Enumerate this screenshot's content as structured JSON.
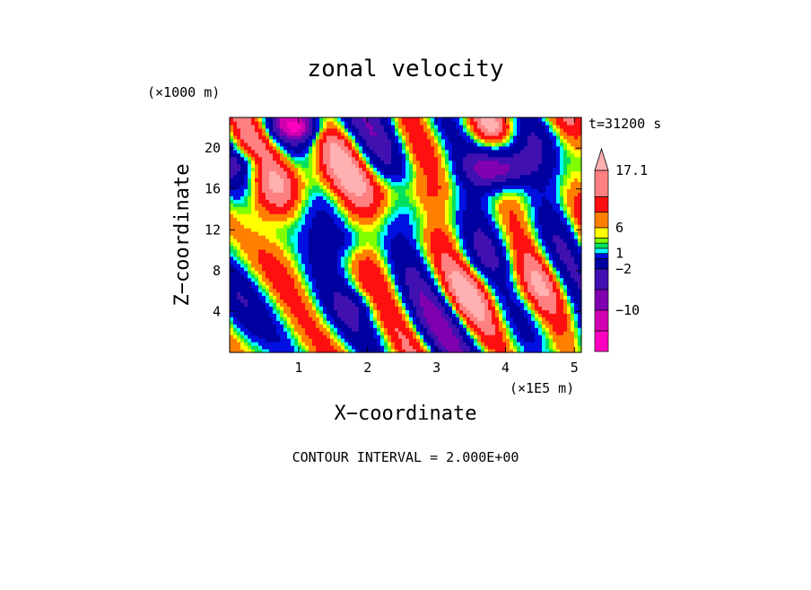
{
  "chart_data": {
    "type": "heatmap",
    "title": "zonal velocity",
    "xlabel": "X−coordinate",
    "ylabel": "Z−coordinate",
    "x_unit": "(×1E5 m)",
    "y_unit": "(×1000 m)",
    "time_label": "t=31200 s",
    "xlim": [
      0,
      5.1
    ],
    "ylim": [
      0,
      23
    ],
    "x_ticks": [
      1,
      2,
      3,
      4,
      5
    ],
    "x_tick_labels": [
      "1",
      "2",
      "3",
      "4",
      "5"
    ],
    "y_ticks": [
      4,
      8,
      12,
      16,
      20
    ],
    "y_tick_labels": [
      "4",
      "8",
      "12",
      "16",
      "20"
    ],
    "contour_interval_text": "CONTOUR INTERVAL = 2.000E+00",
    "colorbar": {
      "levels": [
        -18,
        -14,
        -10,
        -6,
        -2,
        0,
        1,
        2,
        3,
        4,
        6,
        9,
        12,
        17.1
      ],
      "tick_labels": [
        {
          "value": 17.1,
          "label": "17.1"
        },
        {
          "value": 6,
          "label": "6"
        },
        {
          "value": 1,
          "label": "1"
        },
        {
          "value": -2,
          "label": "−2"
        },
        {
          "value": -10,
          "label": "−10"
        }
      ],
      "colors": [
        "#ff00c0",
        "#d000b0",
        "#8000b0",
        "#4010b0",
        "#0000a0",
        "#0010e0",
        "#00ffff",
        "#00e060",
        "#80ff00",
        "#ffff00",
        "#ff8000",
        "#ff1010",
        "#ff8080",
        "#ffb0b0"
      ]
    },
    "field_value_range": [
      -16,
      16
    ]
  }
}
